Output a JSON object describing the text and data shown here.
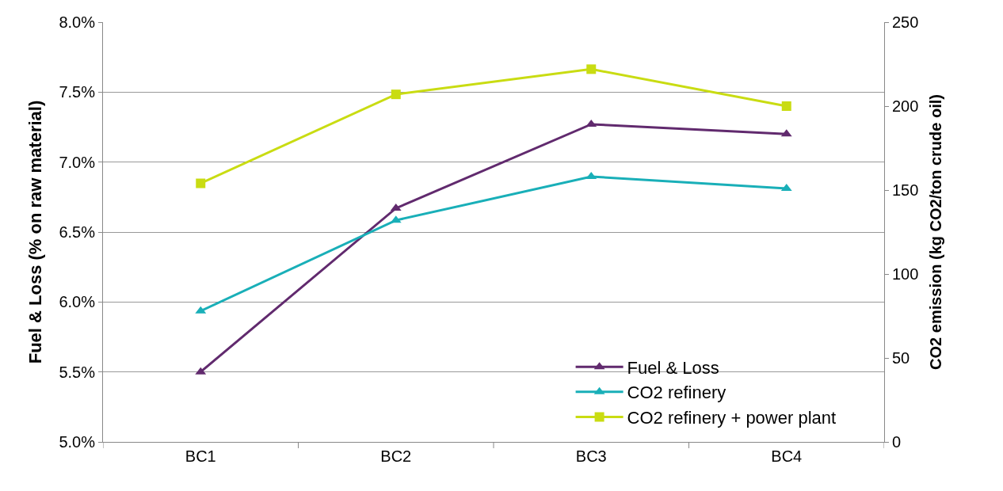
{
  "chart_data": {
    "type": "line",
    "ylabel": "Fuel & Loss (% on raw material)",
    "y2label": "CO2 emission (kg CO2/ton crude oil)",
    "categories": [
      "BC1",
      "BC2",
      "BC3",
      "BC4"
    ],
    "series": [
      {
        "name": "Fuel & Loss",
        "color": "#612a6e",
        "marker": "triangle",
        "values": [
          5.5,
          6.67,
          7.27,
          7.2
        ]
      },
      {
        "name": "CO2 refinery",
        "color": "#19afb8",
        "marker": "triangle",
        "axis": "y2",
        "values": [
          78,
          132,
          158,
          151
        ]
      },
      {
        "name": "CO2 refinery + power plant",
        "color": "#c9dc12",
        "marker": "square",
        "axis": "y2",
        "values": [
          154,
          207,
          222,
          200
        ]
      }
    ],
    "ylim": [
      5.0,
      8.0
    ],
    "yticks": [
      {
        "value": 5.0,
        "label": "5.0%"
      },
      {
        "value": 5.5,
        "label": "5.5%"
      },
      {
        "value": 6.0,
        "label": "6.0%"
      },
      {
        "value": 6.5,
        "label": "6.5%"
      },
      {
        "value": 7.0,
        "label": "7.0%"
      },
      {
        "value": 7.5,
        "label": "7.5%"
      },
      {
        "value": 8.0,
        "label": "8.0%"
      }
    ],
    "y2lim": [
      0,
      250
    ],
    "y2ticks": [
      0,
      50,
      100,
      150,
      200,
      250
    ],
    "grid": "y",
    "legend": "bottom right",
    "line_style": "solid"
  }
}
